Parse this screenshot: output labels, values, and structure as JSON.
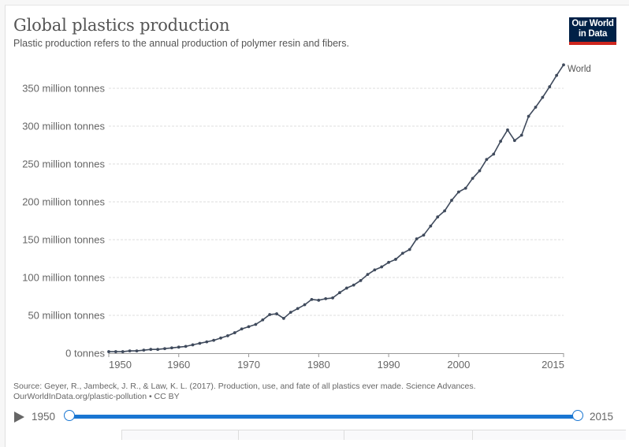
{
  "header": {
    "title": "Global plastics production",
    "subtitle": "Plastic production refers to the annual production of polymer resin and fibers.",
    "logo_line1": "Our World",
    "logo_line2": "in Data"
  },
  "colors": {
    "series": "#3f4a5c",
    "logo_bg": "#002147",
    "logo_accent": "#ce261e",
    "timeline": "#1976d2"
  },
  "chart_data": {
    "type": "line",
    "title": "Global plastics production",
    "subtitle": "Plastic production refers to the annual production of polymer resin and fibers.",
    "xlabel": "",
    "ylabel": "",
    "xlim": [
      1950,
      2015
    ],
    "ylim": [
      0,
      380
    ],
    "grid": true,
    "y_ticks": [
      {
        "value": 0,
        "label": "0 tonnes"
      },
      {
        "value": 50,
        "label": "50 million tonnes"
      },
      {
        "value": 100,
        "label": "100 million tonnes"
      },
      {
        "value": 150,
        "label": "150 million tonnes"
      },
      {
        "value": 200,
        "label": "200 million tonnes"
      },
      {
        "value": 250,
        "label": "250 million tonnes"
      },
      {
        "value": 300,
        "label": "300 million tonnes"
      },
      {
        "value": 350,
        "label": "350 million tonnes"
      }
    ],
    "x_ticks": [
      {
        "value": 1950,
        "label": "1950"
      },
      {
        "value": 1960,
        "label": "1960"
      },
      {
        "value": 1970,
        "label": "1970"
      },
      {
        "value": 1980,
        "label": "1980"
      },
      {
        "value": 1990,
        "label": "1990"
      },
      {
        "value": 2000,
        "label": "2000"
      },
      {
        "value": 2015,
        "label": "2015"
      }
    ],
    "units": "million tonnes",
    "series": [
      {
        "name": "World",
        "x": [
          1950,
          1951,
          1952,
          1953,
          1954,
          1955,
          1956,
          1957,
          1958,
          1959,
          1960,
          1961,
          1962,
          1963,
          1964,
          1965,
          1966,
          1967,
          1968,
          1969,
          1970,
          1971,
          1972,
          1973,
          1974,
          1975,
          1976,
          1977,
          1978,
          1979,
          1980,
          1981,
          1982,
          1983,
          1984,
          1985,
          1986,
          1987,
          1988,
          1989,
          1990,
          1991,
          1992,
          1993,
          1994,
          1995,
          1996,
          1997,
          1998,
          1999,
          2000,
          2001,
          2002,
          2003,
          2004,
          2005,
          2006,
          2007,
          2008,
          2009,
          2010,
          2011,
          2012,
          2013,
          2014,
          2015
        ],
        "values": [
          2,
          2,
          2,
          3,
          3,
          4,
          5,
          5,
          6,
          7,
          8,
          9,
          11,
          13,
          15,
          17,
          20,
          23,
          27,
          32,
          35,
          38,
          44,
          51,
          52,
          46,
          54,
          59,
          64,
          71,
          70,
          72,
          73,
          80,
          86,
          90,
          96,
          104,
          110,
          114,
          120,
          124,
          132,
          137,
          151,
          156,
          168,
          180,
          188,
          202,
          213,
          218,
          231,
          241,
          256,
          263,
          280,
          295,
          281,
          288,
          313,
          325,
          338,
          352,
          367,
          381
        ]
      }
    ],
    "legend": "right-end-label"
  },
  "footer": {
    "source": "Source: Geyer, R., Jambeck, J. R., & Law, K. L. (2017). Production, use, and fate of all plastics ever made. Science Advances.",
    "url_license": "OurWorldInData.org/plastic-pollution • CC BY"
  },
  "timeline": {
    "start_label": "1950",
    "end_label": "2015",
    "range_start": 1950,
    "range_end": 2015,
    "play_icon": "play-icon"
  }
}
